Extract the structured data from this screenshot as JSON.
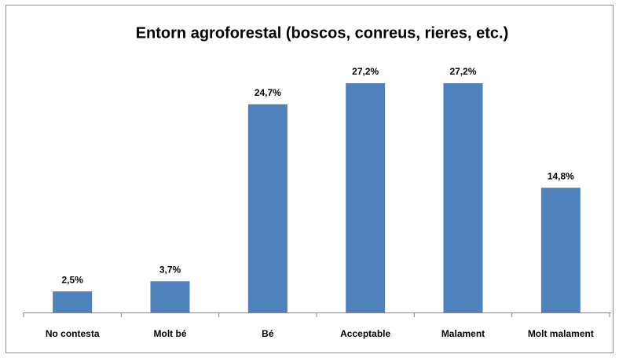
{
  "chart_data": {
    "type": "bar",
    "title": "Entorn agroforestal (boscos, conreus, rieres, etc.)",
    "categories": [
      "No contesta",
      "Molt bé",
      "Bé",
      "Acceptable",
      "Malament",
      "Molt malament"
    ],
    "values": [
      2.5,
      3.7,
      24.7,
      27.2,
      27.2,
      14.8
    ],
    "value_labels": [
      "2,5%",
      "3,7%",
      "24,7%",
      "27,2%",
      "27,2%",
      "14,8%"
    ],
    "color": "#4f81bd"
  }
}
